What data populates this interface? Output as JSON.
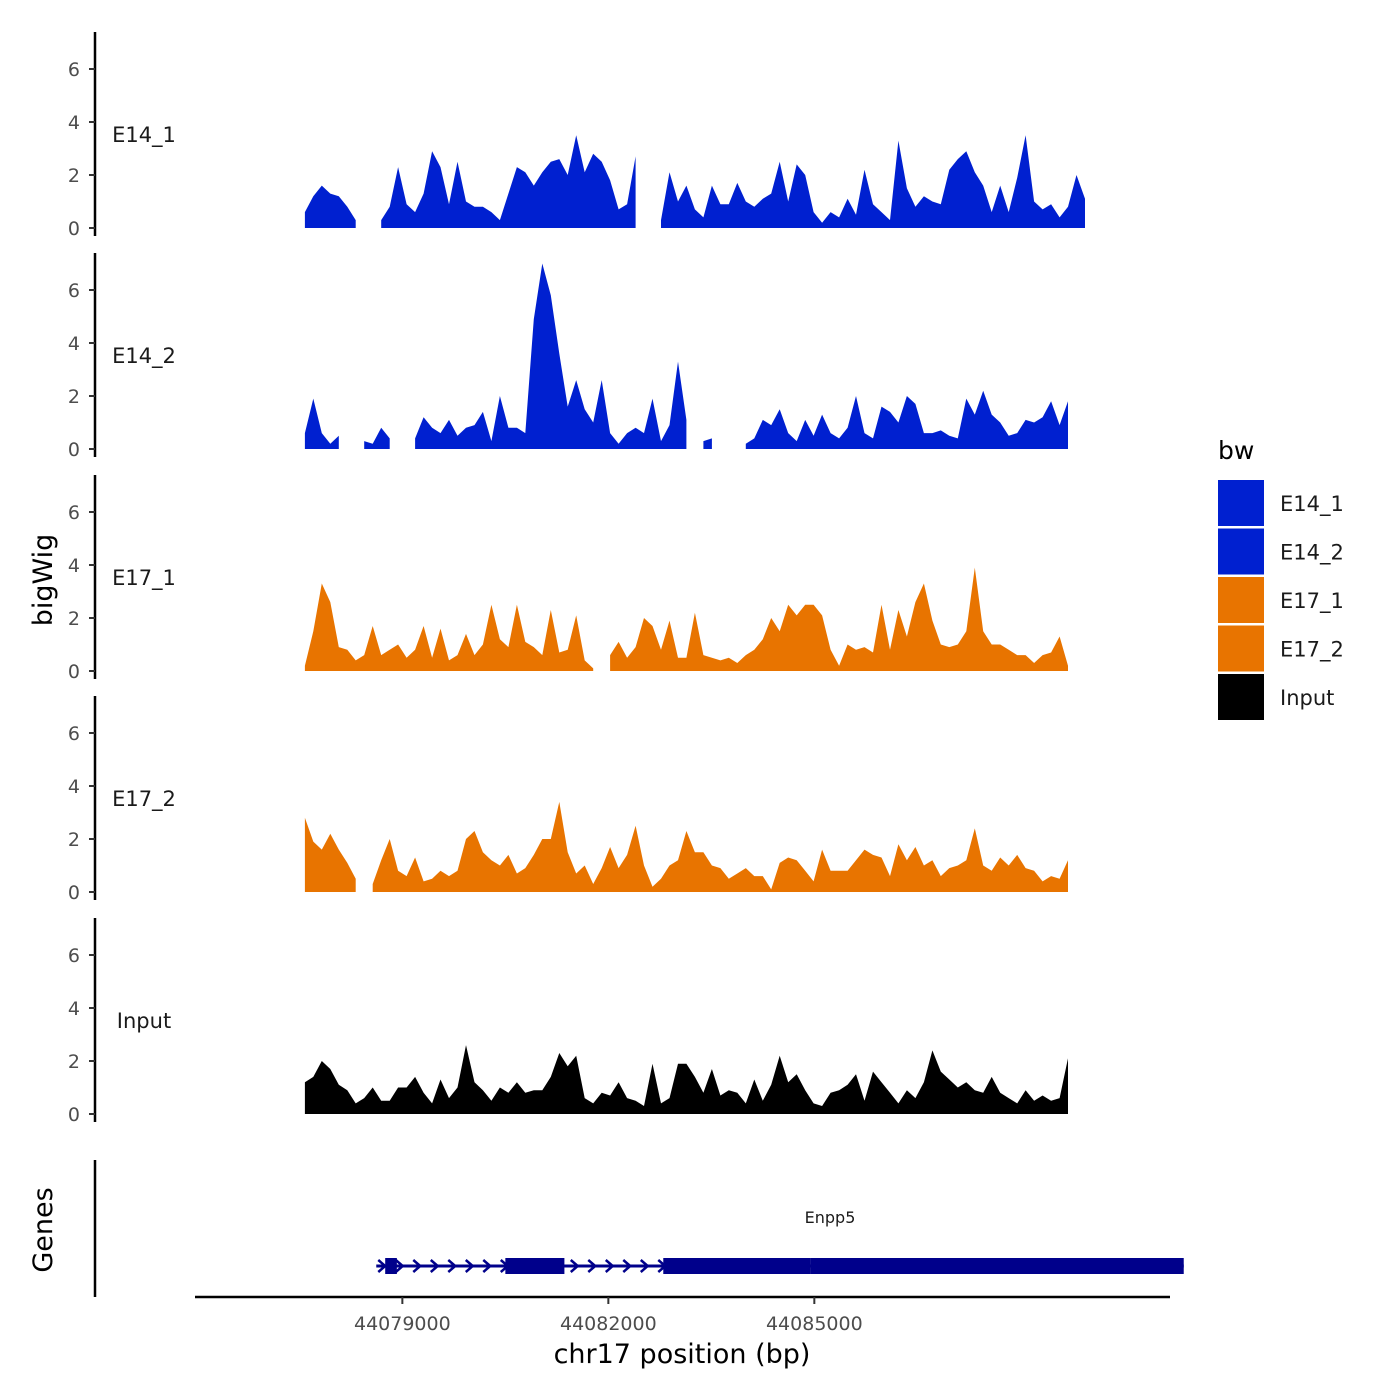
{
  "chart_data": {
    "type": "area",
    "ylabel": "bigWig",
    "xlabel": "chr17 position (bp)",
    "genes_label": "Genes",
    "x_range": [
      44075980,
      44090180
    ],
    "y_range": [
      0,
      7.5
    ],
    "y_ticks": [
      "0",
      "2",
      "4",
      "6"
    ],
    "x_ticks": [
      {
        "value": 44079000,
        "label": "44079000"
      },
      {
        "value": 44082000,
        "label": "44082000"
      },
      {
        "value": 44085000,
        "label": "44085000"
      }
    ],
    "colors": {
      "E14": "#0020d0",
      "E17": "#e87400",
      "Input": "#000000",
      "gene": "#00008b"
    },
    "legend": {
      "title": "bw",
      "entries": [
        {
          "label": "E14_1",
          "color": "#0020d0"
        },
        {
          "label": "E14_2",
          "color": "#0020d0"
        },
        {
          "label": "E17_1",
          "color": "#e87400"
        },
        {
          "label": "E17_2",
          "color": "#e87400"
        },
        {
          "label": "Input",
          "color": "#000000"
        }
      ]
    },
    "track_x": {
      "start": 44077580,
      "step": 123.5
    },
    "tracks": [
      {
        "name": "E14_1",
        "color": "#0020d0",
        "values": [
          0.6,
          1.2,
          1.6,
          1.3,
          1.2,
          0.8,
          0.3,
          null,
          null,
          0.3,
          0.8,
          2.3,
          0.9,
          0.6,
          1.3,
          2.9,
          2.3,
          0.9,
          2.5,
          1.0,
          0.8,
          0.8,
          0.6,
          0.3,
          1.3,
          2.3,
          2.1,
          1.6,
          2.1,
          2.5,
          2.6,
          2.0,
          3.5,
          2.1,
          2.8,
          2.5,
          1.8,
          0.7,
          0.9,
          2.7,
          null,
          null,
          0.3,
          2.1,
          1.0,
          1.6,
          0.7,
          0.4,
          1.6,
          0.9,
          0.9,
          1.7,
          1.0,
          0.8,
          1.1,
          1.3,
          2.5,
          1.0,
          2.4,
          2.0,
          0.6,
          0.2,
          0.6,
          0.4,
          1.1,
          0.5,
          2.2,
          0.9,
          0.6,
          0.3,
          3.3,
          1.5,
          0.8,
          1.2,
          1.0,
          0.9,
          2.2,
          2.6,
          2.9,
          2.1,
          1.6,
          0.6,
          1.6,
          0.6,
          1.9,
          3.5,
          1.0,
          0.7,
          0.9,
          0.4,
          0.8,
          2.0,
          1.1
        ]
      },
      {
        "name": "E14_2",
        "color": "#0020d0",
        "values": [
          0.6,
          1.9,
          0.6,
          0.2,
          0.5,
          null,
          null,
          0.3,
          0.2,
          0.8,
          0.4,
          null,
          null,
          0.4,
          1.2,
          0.8,
          0.6,
          1.1,
          0.5,
          0.8,
          0.9,
          1.4,
          0.3,
          2.0,
          0.8,
          0.8,
          0.6,
          4.9,
          7.0,
          5.8,
          3.6,
          1.6,
          2.6,
          1.5,
          1.0,
          2.6,
          0.6,
          0.2,
          0.6,
          0.8,
          0.6,
          1.9,
          0.3,
          0.9,
          3.3,
          1.1,
          null,
          0.3,
          0.4,
          null,
          null,
          null,
          0.2,
          0.4,
          1.1,
          0.9,
          1.5,
          0.6,
          0.3,
          1.1,
          0.5,
          1.3,
          0.6,
          0.4,
          0.8,
          2.0,
          0.6,
          0.4,
          1.6,
          1.4,
          1.0,
          2.0,
          1.7,
          0.6,
          0.6,
          0.7,
          0.5,
          0.4,
          1.9,
          1.3,
          2.2,
          1.3,
          1.0,
          0.5,
          0.6,
          1.1,
          1.0,
          1.2,
          1.8,
          0.9,
          1.8
        ]
      },
      {
        "name": "E17_1",
        "color": "#e87400",
        "values": [
          0.2,
          1.5,
          3.3,
          2.6,
          0.9,
          0.8,
          0.4,
          0.6,
          1.7,
          0.6,
          0.8,
          1.0,
          0.5,
          0.8,
          1.7,
          0.5,
          1.6,
          0.4,
          0.6,
          1.4,
          0.6,
          1.0,
          2.5,
          1.2,
          0.9,
          2.5,
          1.1,
          0.9,
          0.6,
          2.3,
          0.7,
          0.8,
          2.1,
          0.4,
          0.1,
          null,
          0.6,
          1.1,
          0.5,
          0.9,
          2.0,
          1.7,
          0.8,
          1.9,
          0.5,
          0.5,
          2.2,
          0.6,
          0.5,
          0.4,
          0.5,
          0.3,
          0.6,
          0.8,
          1.2,
          2.0,
          1.5,
          2.5,
          2.1,
          2.5,
          2.5,
          2.1,
          0.8,
          0.2,
          1.0,
          0.8,
          0.9,
          0.7,
          2.5,
          0.8,
          2.3,
          1.3,
          2.6,
          3.3,
          1.9,
          1.0,
          0.9,
          1.0,
          1.5,
          3.9,
          1.5,
          1.0,
          1.0,
          0.8,
          0.6,
          0.6,
          0.3,
          0.6,
          0.7,
          1.3,
          0.2
        ]
      },
      {
        "name": "E17_2",
        "color": "#e87400",
        "values": [
          2.8,
          1.9,
          1.6,
          2.2,
          1.6,
          1.1,
          0.5,
          null,
          0.3,
          1.2,
          2.0,
          0.8,
          0.6,
          1.3,
          0.4,
          0.5,
          0.8,
          0.6,
          0.8,
          2.0,
          2.3,
          1.5,
          1.2,
          1.0,
          1.4,
          0.7,
          0.9,
          1.4,
          2.0,
          2.0,
          3.4,
          1.5,
          0.7,
          1.0,
          0.3,
          0.9,
          1.7,
          0.9,
          1.4,
          2.5,
          1.0,
          0.2,
          0.5,
          1.0,
          1.2,
          2.3,
          1.5,
          1.5,
          1.0,
          0.9,
          0.5,
          0.7,
          0.9,
          0.6,
          0.6,
          0.1,
          1.1,
          1.3,
          1.2,
          0.8,
          0.4,
          1.6,
          0.8,
          0.8,
          0.8,
          1.2,
          1.6,
          1.4,
          1.3,
          0.6,
          1.8,
          1.2,
          1.7,
          1.0,
          1.2,
          0.6,
          0.9,
          1.0,
          1.2,
          2.4,
          1.0,
          0.8,
          1.3,
          1.0,
          1.4,
          0.9,
          0.8,
          0.4,
          0.6,
          0.5,
          1.2
        ]
      },
      {
        "name": "Input",
        "color": "#000000",
        "values": [
          1.2,
          1.4,
          2.0,
          1.7,
          1.1,
          0.9,
          0.4,
          0.6,
          1.0,
          0.5,
          0.5,
          1.0,
          1.0,
          1.4,
          0.8,
          0.4,
          1.3,
          0.6,
          1.0,
          2.6,
          1.2,
          0.9,
          0.5,
          1.0,
          0.8,
          1.2,
          0.8,
          0.9,
          0.9,
          1.4,
          2.3,
          1.8,
          2.2,
          0.6,
          0.4,
          0.8,
          0.7,
          1.2,
          0.6,
          0.5,
          0.3,
          1.9,
          0.4,
          0.6,
          1.9,
          1.9,
          1.4,
          0.8,
          1.7,
          0.7,
          0.9,
          0.8,
          0.4,
          1.3,
          0.5,
          1.1,
          2.2,
          1.2,
          1.5,
          0.9,
          0.4,
          0.3,
          0.8,
          0.9,
          1.1,
          1.5,
          0.5,
          1.6,
          1.2,
          0.8,
          0.4,
          0.9,
          0.6,
          1.2,
          2.4,
          1.6,
          1.3,
          1.0,
          1.2,
          0.9,
          0.8,
          1.4,
          0.8,
          0.6,
          0.4,
          0.9,
          0.5,
          0.7,
          0.5,
          0.6,
          2.1
        ]
      }
    ],
    "gene": {
      "name": "Enpp5",
      "start": 44078620,
      "end": 44090380,
      "exons": [
        [
          44078750,
          44078920
        ],
        [
          44080500,
          44081360
        ],
        [
          44082800,
          44084950
        ],
        [
          44084950,
          44090380
        ]
      ],
      "strand": "+"
    }
  }
}
